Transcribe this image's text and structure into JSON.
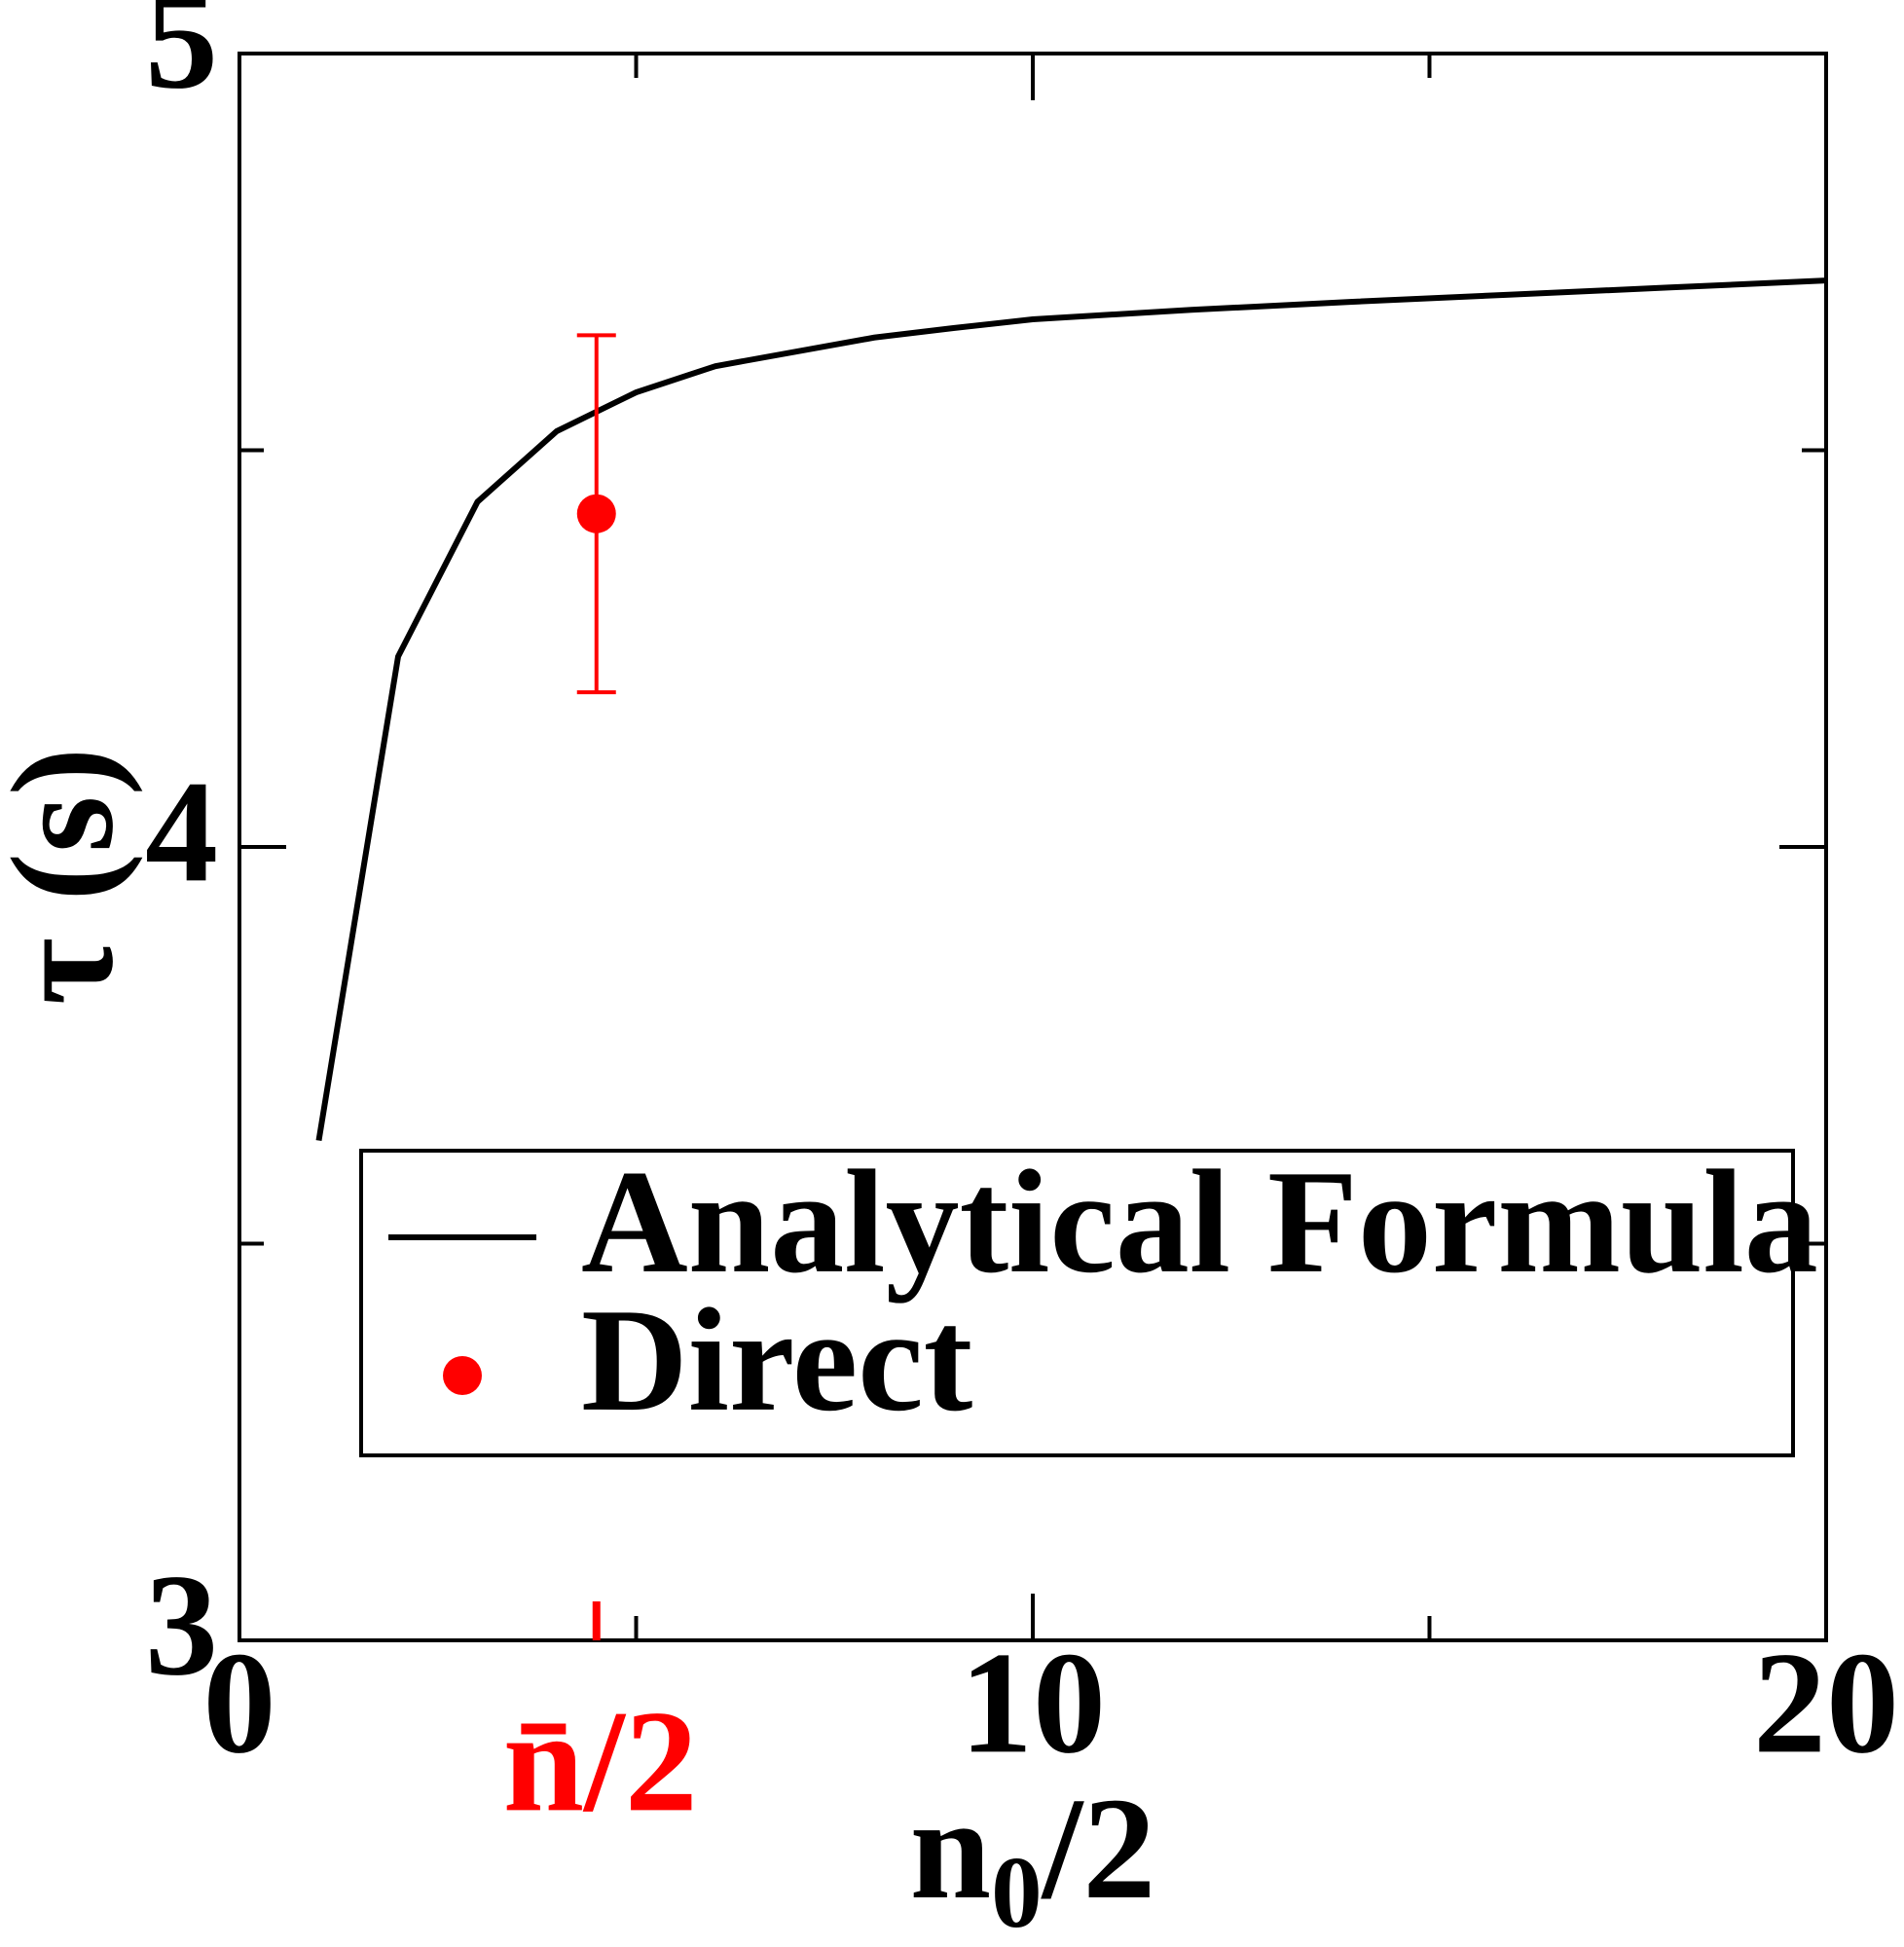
{
  "chart_data": {
    "type": "line",
    "x_label": "n0/2",
    "y_label": "τ (s)",
    "xlim": [
      0,
      20
    ],
    "xticks": [
      0,
      10,
      20
    ],
    "xminor": [
      5,
      15
    ],
    "ylim": [
      3,
      5
    ],
    "yticks": [
      3,
      4,
      5
    ],
    "yminor": [
      3.5,
      4.5
    ],
    "series": [
      {
        "name": "Analytical Formula",
        "color": "#000000",
        "x": [
          1,
          2,
          3,
          4,
          5,
          6,
          7,
          8,
          9,
          10,
          12,
          14,
          16,
          18,
          20
        ],
        "values": [
          3.63,
          4.24,
          4.435,
          4.524,
          4.573,
          4.606,
          4.624,
          4.642,
          4.654,
          4.665,
          4.677,
          4.687,
          4.696,
          4.705,
          4.714
        ]
      },
      {
        "name": "Direct",
        "color": "#ff0000",
        "marker": "circle",
        "x": [
          4.5
        ],
        "values": [
          4.42
        ],
        "errors": [
          0.225
        ]
      }
    ],
    "annotation": {
      "text": "n̄/2",
      "x": 4.5,
      "color": "#ff0000"
    },
    "legend": "lower right"
  }
}
